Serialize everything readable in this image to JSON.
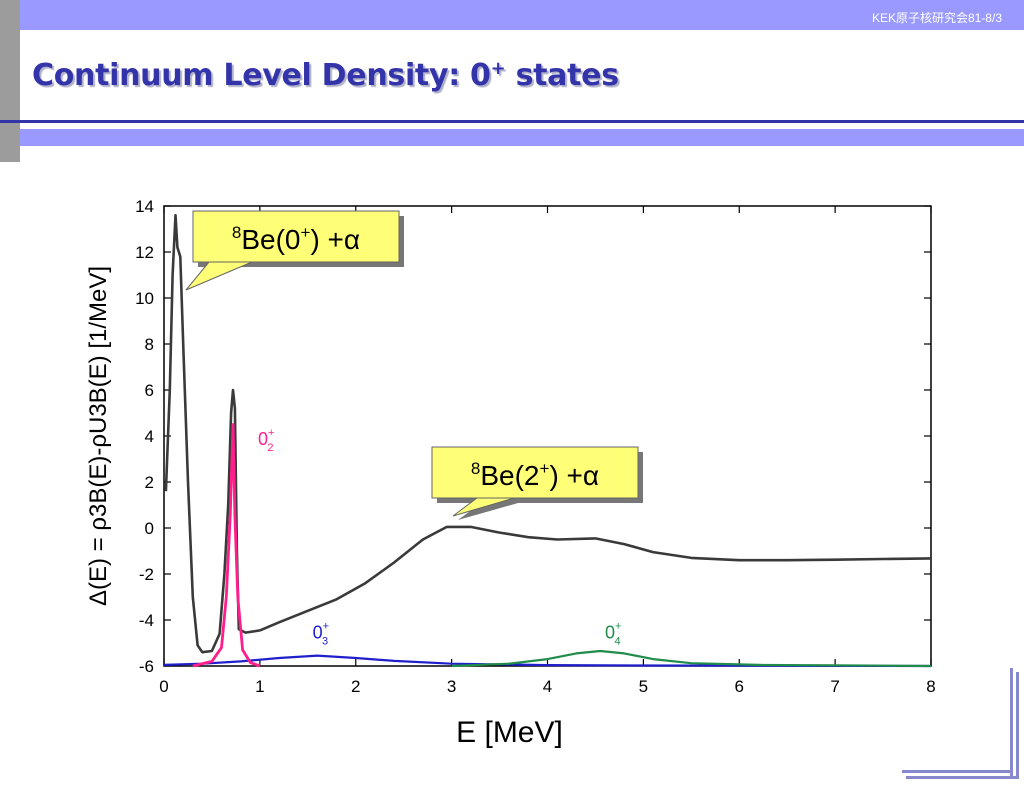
{
  "header": {
    "note": "KEK原子核研究会81-8/3"
  },
  "slide": {
    "title_main": "Continuum Level Density: 0",
    "title_sup": "+",
    "title_tail": " states"
  },
  "colors": {
    "band": "#9999ff",
    "title": "#3333aa",
    "curve_total": "#3a3a3a",
    "curve_02": "#ff1f8c",
    "curve_03": "#1f1fcc",
    "curve_04": "#1f8c4a",
    "callout_fill": "#ffff77"
  },
  "callouts": [
    {
      "sup": "8",
      "text": "Be(0",
      "sup2": "+",
      "tail": ") +α"
    },
    {
      "sup": "8",
      "text": "Be(2",
      "sup2": "+",
      "tail": ") +α"
    }
  ],
  "chart_data": {
    "type": "line",
    "xlabel": "E [MeV]",
    "ylabel": "Δ(E) = ρ3B(E)-ρU3B(E) [1/MeV]",
    "xlim": [
      0,
      8
    ],
    "ylim": [
      -6,
      14
    ],
    "xticks": [
      "0",
      "1",
      "2",
      "3",
      "4",
      "5",
      "6",
      "7",
      "8"
    ],
    "yticks": [
      "-6",
      "-4",
      "-2",
      "0",
      "2",
      "4",
      "6",
      "8",
      "10",
      "12",
      "14"
    ],
    "grid": false,
    "series": [
      {
        "key": "total",
        "color": "#3a3a3a",
        "points": [
          [
            0.02,
            1.6
          ],
          [
            0.06,
            6
          ],
          [
            0.09,
            11
          ],
          [
            0.12,
            13.6
          ],
          [
            0.14,
            12.2
          ],
          [
            0.17,
            11.8
          ],
          [
            0.2,
            8
          ],
          [
            0.25,
            2
          ],
          [
            0.3,
            -3
          ],
          [
            0.35,
            -5.1
          ],
          [
            0.4,
            -5.4
          ],
          [
            0.5,
            -5.35
          ],
          [
            0.58,
            -4.6
          ],
          [
            0.63,
            -2
          ],
          [
            0.67,
            1
          ],
          [
            0.7,
            5
          ],
          [
            0.72,
            6
          ],
          [
            0.74,
            5.2
          ],
          [
            0.76,
            -1
          ],
          [
            0.78,
            -4.4
          ],
          [
            0.85,
            -4.55
          ],
          [
            1.0,
            -4.45
          ],
          [
            1.2,
            -4.1
          ],
          [
            1.5,
            -3.6
          ],
          [
            1.8,
            -3.1
          ],
          [
            2.1,
            -2.4
          ],
          [
            2.4,
            -1.5
          ],
          [
            2.7,
            -0.5
          ],
          [
            2.95,
            0.05
          ],
          [
            3.2,
            0.05
          ],
          [
            3.5,
            -0.2
          ],
          [
            3.8,
            -0.4
          ],
          [
            4.1,
            -0.5
          ],
          [
            4.5,
            -0.45
          ],
          [
            4.8,
            -0.7
          ],
          [
            5.1,
            -1.05
          ],
          [
            5.5,
            -1.3
          ],
          [
            6.0,
            -1.4
          ],
          [
            6.5,
            -1.4
          ],
          [
            7.0,
            -1.38
          ],
          [
            7.5,
            -1.35
          ],
          [
            8.0,
            -1.32
          ]
        ]
      },
      {
        "key": "0_2+",
        "name": "0₂⁺",
        "color": "#ff1f8c",
        "points": [
          [
            0.3,
            -6
          ],
          [
            0.5,
            -5.8
          ],
          [
            0.6,
            -5.2
          ],
          [
            0.65,
            -3
          ],
          [
            0.69,
            0.5
          ],
          [
            0.72,
            4.5
          ],
          [
            0.74,
            0.5
          ],
          [
            0.77,
            -3
          ],
          [
            0.82,
            -5.3
          ],
          [
            0.9,
            -5.85
          ],
          [
            1.0,
            -6
          ]
        ]
      },
      {
        "key": "0_3+",
        "name": "0₃⁺",
        "color": "#1f1fcc",
        "points": [
          [
            0,
            -5.95
          ],
          [
            0.4,
            -5.9
          ],
          [
            0.8,
            -5.8
          ],
          [
            1.2,
            -5.65
          ],
          [
            1.6,
            -5.55
          ],
          [
            2.0,
            -5.65
          ],
          [
            2.4,
            -5.78
          ],
          [
            3.0,
            -5.9
          ],
          [
            4.0,
            -5.96
          ],
          [
            5.0,
            -5.98
          ],
          [
            8.0,
            -6
          ]
        ]
      },
      {
        "key": "0_4+",
        "name": "0₄⁺",
        "color": "#1f8c4a",
        "points": [
          [
            3.0,
            -6
          ],
          [
            3.6,
            -5.9
          ],
          [
            4.0,
            -5.7
          ],
          [
            4.3,
            -5.45
          ],
          [
            4.55,
            -5.35
          ],
          [
            4.8,
            -5.45
          ],
          [
            5.1,
            -5.7
          ],
          [
            5.5,
            -5.88
          ],
          [
            6.2,
            -5.95
          ],
          [
            7.0,
            -5.97
          ],
          [
            8.0,
            -6
          ]
        ]
      }
    ],
    "annotations": [
      {
        "series": "0_2+",
        "base": "0",
        "sub": "2",
        "sup": "+",
        "x": 0.98,
        "y": 3.6
      },
      {
        "series": "0_3+",
        "base": "0",
        "sub": "3",
        "sup": "+",
        "x": 1.55,
        "y": -4.8
      },
      {
        "series": "0_4+",
        "base": "0",
        "sub": "4",
        "sup": "+",
        "x": 4.6,
        "y": -4.8
      }
    ]
  }
}
